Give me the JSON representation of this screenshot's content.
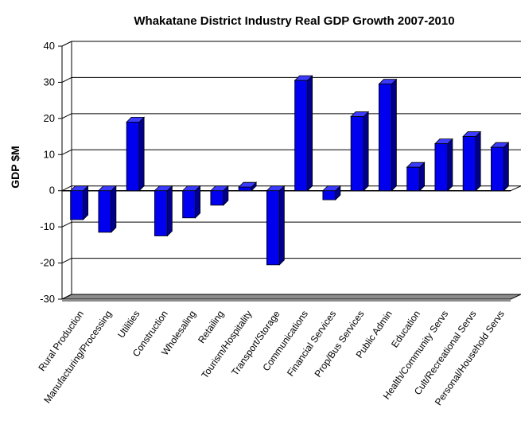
{
  "chart_data": {
    "type": "bar",
    "title": "Whakatane District Industry Real GDP Growth 2007-2010",
    "xlabel": "",
    "ylabel": "GDP $M",
    "ylim": [
      -30,
      40
    ],
    "yticks": [
      "40",
      "30",
      "20",
      "10",
      "0",
      "-10",
      "-20",
      "-30"
    ],
    "grid": true,
    "categories": [
      "Rural Production",
      "Manufacturing/Processing",
      "Utilities",
      "Construction",
      "Wholesaling",
      "Retailing",
      "Tourism/Hospitality",
      "Transport/Storage",
      "Communications",
      "Financial Services",
      "Prop/Bus Services",
      "Public Admin",
      "Education",
      "Health/Community Servs",
      "Cult/Recreational Servs",
      "Personal/Household Servs"
    ],
    "values": [
      -8,
      -11.5,
      19,
      -12.5,
      -7.5,
      -4,
      1,
      -20.5,
      30.5,
      -2.5,
      20.5,
      29.5,
      6.5,
      13,
      15,
      12
    ],
    "bar_color": "#0000ee"
  }
}
